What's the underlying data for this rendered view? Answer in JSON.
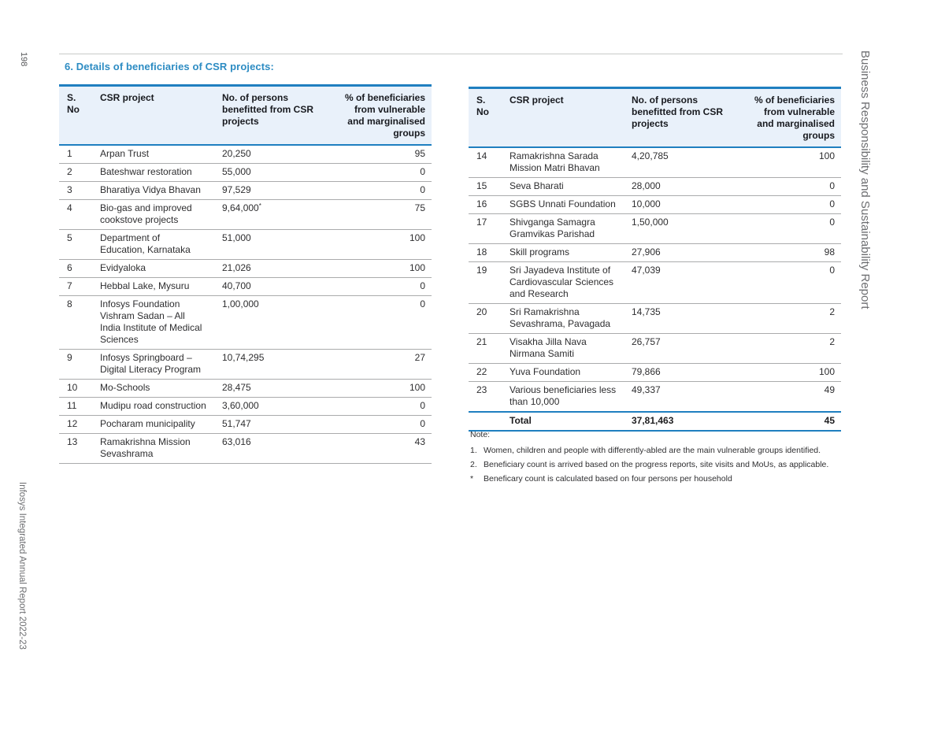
{
  "page": {
    "page_number": "198",
    "left_vertical_text": "Infosys Integrated Annual Report 2022-23",
    "right_vertical_text": "Business Responsibility and Sustainability Report",
    "section_title": "6. Details of beneficiaries of CSR projects:"
  },
  "colors": {
    "accent_blue": "#2d8cc3",
    "table_border_blue": "#1f7fc0",
    "header_background": "#e9f1fa",
    "row_divider_gray": "#aaabac",
    "side_text_gray": "#6d6e71"
  },
  "table_headers": {
    "sno": "S.\nNo",
    "project": "CSR project",
    "persons": "No. of persons benefitted from CSR projects",
    "percent": "% of beneficiaries from vulnerable and marginalised groups"
  },
  "left_table": {
    "rows": [
      {
        "sno": "1",
        "project": "Arpan Trust",
        "persons": "20,250",
        "percent": "95"
      },
      {
        "sno": "2",
        "project": "Bateshwar restoration",
        "persons": "55,000",
        "percent": "0"
      },
      {
        "sno": "3",
        "project": "Bharatiya Vidya Bhavan",
        "persons": "97,529",
        "percent": "0"
      },
      {
        "sno": "4",
        "project": "Bio-gas and improved cookstove projects",
        "persons": "9,64,000*",
        "percent": "75"
      },
      {
        "sno": "5",
        "project": "Department of Education, Karnataka",
        "persons": "51,000",
        "percent": "100"
      },
      {
        "sno": "6",
        "project": "Evidyaloka",
        "persons": "21,026",
        "percent": "100"
      },
      {
        "sno": "7",
        "project": "Hebbal Lake, Mysuru",
        "persons": "40,700",
        "percent": "0"
      },
      {
        "sno": "8",
        "project": "Infosys Foundation Vishram Sadan – All India Institute of Medical Sciences",
        "persons": "1,00,000",
        "percent": "0"
      },
      {
        "sno": "9",
        "project": "Infosys Springboard – Digital Literacy Program",
        "persons": "10,74,295",
        "percent": "27"
      },
      {
        "sno": "10",
        "project": "Mo-Schools",
        "persons": "28,475",
        "percent": "100"
      },
      {
        "sno": "11",
        "project": "Mudipu road construction",
        "persons": "3,60,000",
        "percent": "0"
      },
      {
        "sno": "12",
        "project": "Pocharam municipality",
        "persons": "51,747",
        "percent": "0"
      },
      {
        "sno": "13",
        "project": "Ramakrishna Mission Sevashrama",
        "persons": "63,016",
        "percent": "43"
      }
    ]
  },
  "right_table": {
    "rows": [
      {
        "sno": "14",
        "project": "Ramakrishna Sarada Mission Matri Bhavan",
        "persons": "4,20,785",
        "percent": "100"
      },
      {
        "sno": "15",
        "project": "Seva Bharati",
        "persons": "28,000",
        "percent": "0"
      },
      {
        "sno": "16",
        "project": "SGBS Unnati Foundation",
        "persons": "10,000",
        "percent": "0"
      },
      {
        "sno": "17",
        "project": "Shivganga Samagra Gramvikas Parishad",
        "persons": "1,50,000",
        "percent": "0"
      },
      {
        "sno": "18",
        "project": "Skill programs",
        "persons": "27,906",
        "percent": "98"
      },
      {
        "sno": "19",
        "project": "Sri Jayadeva Institute of Cardiovascular Sciences and Research",
        "persons": "47,039",
        "percent": "0"
      },
      {
        "sno": "20",
        "project": "Sri Ramakrishna Sevashrama, Pavagada",
        "persons": "14,735",
        "percent": "2"
      },
      {
        "sno": "21",
        "project": "Visakha Jilla Nava Nirmana Samiti",
        "persons": "26,757",
        "percent": "2"
      },
      {
        "sno": "22",
        "project": "Yuva Foundation",
        "persons": "79,866",
        "percent": "100"
      },
      {
        "sno": "23",
        "project": "Various beneficiaries less than 10,000",
        "persons": "49,337",
        "percent": "49"
      }
    ],
    "total": {
      "label": "Total",
      "persons": "37,81,463",
      "percent": "45"
    }
  },
  "notes": {
    "heading": "Note:",
    "items": [
      {
        "marker": "1.",
        "text": "Women, children and people with differently-abled are the main vulnerable groups identified."
      },
      {
        "marker": "2.",
        "text": "Beneficiary count is arrived based on the progress reports, site visits and MoUs, as applicable."
      },
      {
        "marker": "*",
        "text": "Beneficary count is calculated based on four persons per household"
      }
    ]
  }
}
